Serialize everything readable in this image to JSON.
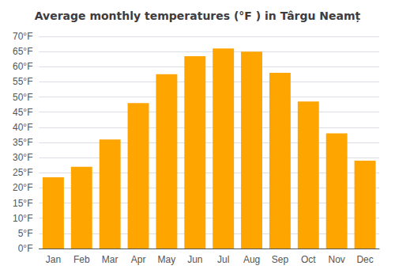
{
  "chart_data": {
    "type": "bar",
    "title": "Average monthly temperatures (°F ) in Târgu Neamț",
    "categories": [
      "Jan",
      "Feb",
      "Mar",
      "Apr",
      "May",
      "Jun",
      "Jul",
      "Aug",
      "Sep",
      "Oct",
      "Nov",
      "Dec"
    ],
    "values": [
      23.5,
      27.0,
      36.0,
      48.0,
      57.5,
      63.5,
      66.0,
      65.0,
      58.0,
      48.5,
      38.0,
      29.0
    ],
    "color": "#FFA500",
    "ylim": [
      0,
      70
    ],
    "yticks": [
      {
        "value": 0,
        "label": "0°F"
      },
      {
        "value": 5,
        "label": "5°F"
      },
      {
        "value": 10,
        "label": "10°F"
      },
      {
        "value": 15,
        "label": "15°F"
      },
      {
        "value": 20,
        "label": "20°F"
      },
      {
        "value": 25,
        "label": "25°F"
      },
      {
        "value": 30,
        "label": "30°F"
      },
      {
        "value": 35,
        "label": "35°F"
      },
      {
        "value": 40,
        "label": "40°F"
      },
      {
        "value": 45,
        "label": "45°F"
      },
      {
        "value": 50,
        "label": "50°F"
      },
      {
        "value": 55,
        "label": "55°F"
      },
      {
        "value": 60,
        "label": "60°F"
      },
      {
        "value": 65,
        "label": "65°F"
      },
      {
        "value": 70,
        "label": "70°F"
      }
    ],
    "grid": true
  }
}
